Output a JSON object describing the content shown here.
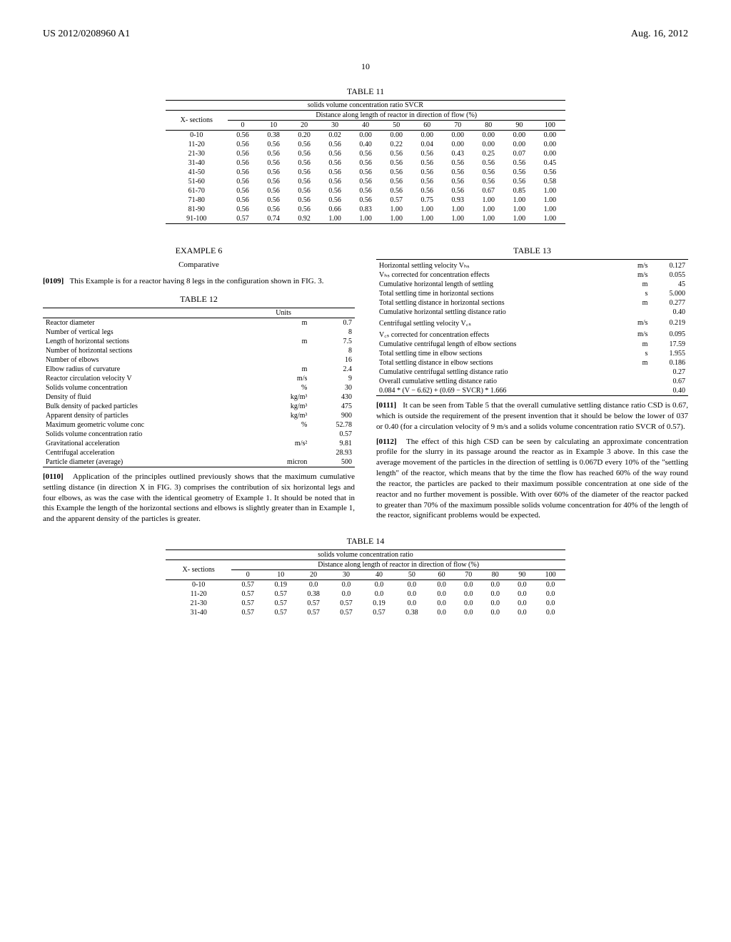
{
  "header": {
    "left": "US 2012/0208960 A1",
    "right": "Aug. 16, 2012",
    "page": "10"
  },
  "table11": {
    "title": "TABLE 11",
    "subtitle": "solids volume concentration ratio SVCR",
    "col_group_label": "Distance along length of reactor in direction of flow (%)",
    "row_label": "X-\nsections",
    "cols": [
      "0",
      "10",
      "20",
      "30",
      "40",
      "50",
      "60",
      "70",
      "80",
      "90",
      "100"
    ],
    "row_labels": [
      "0-10",
      "11-20",
      "21-30",
      "31-40",
      "41-50",
      "51-60",
      "61-70",
      "71-80",
      "81-90",
      "91-100"
    ],
    "rows": [
      [
        "0.56",
        "0.38",
        "0.20",
        "0.02",
        "0.00",
        "0.00",
        "0.00",
        "0.00",
        "0.00",
        "0.00",
        "0.00"
      ],
      [
        "0.56",
        "0.56",
        "0.56",
        "0.56",
        "0.40",
        "0.22",
        "0.04",
        "0.00",
        "0.00",
        "0.00",
        "0.00"
      ],
      [
        "0.56",
        "0.56",
        "0.56",
        "0.56",
        "0.56",
        "0.56",
        "0.56",
        "0.43",
        "0.25",
        "0.07",
        "0.00"
      ],
      [
        "0.56",
        "0.56",
        "0.56",
        "0.56",
        "0.56",
        "0.56",
        "0.56",
        "0.56",
        "0.56",
        "0.56",
        "0.45"
      ],
      [
        "0.56",
        "0.56",
        "0.56",
        "0.56",
        "0.56",
        "0.56",
        "0.56",
        "0.56",
        "0.56",
        "0.56",
        "0.56"
      ],
      [
        "0.56",
        "0.56",
        "0.56",
        "0.56",
        "0.56",
        "0.56",
        "0.56",
        "0.56",
        "0.56",
        "0.56",
        "0.58"
      ],
      [
        "0.56",
        "0.56",
        "0.56",
        "0.56",
        "0.56",
        "0.56",
        "0.56",
        "0.56",
        "0.67",
        "0.85",
        "1.00"
      ],
      [
        "0.56",
        "0.56",
        "0.56",
        "0.56",
        "0.56",
        "0.57",
        "0.75",
        "0.93",
        "1.00",
        "1.00",
        "1.00"
      ],
      [
        "0.56",
        "0.56",
        "0.56",
        "0.66",
        "0.83",
        "1.00",
        "1.00",
        "1.00",
        "1.00",
        "1.00",
        "1.00"
      ],
      [
        "0.57",
        "0.74",
        "0.92",
        "1.00",
        "1.00",
        "1.00",
        "1.00",
        "1.00",
        "1.00",
        "1.00",
        "1.00"
      ]
    ]
  },
  "example6": {
    "title": "EXAMPLE 6",
    "subtitle": "Comparative",
    "p0109_num": "[0109]",
    "p0109": "This Example is for a reactor having 8 legs in the configuration shown in FIG. 3.",
    "p0110_num": "[0110]",
    "p0110": "Application of the principles outlined previously shows that the maximum cumulative settling distance (in direction X in FIG. 3) comprises the contribution of six horizontal legs and four elbows, as was the case with the identical geometry of Example 1. It should be noted that in this Example the length of the horizontal sections and elbows is slightly greater than in Example 1, and the apparent density of the particles is greater.",
    "p0111_num": "[0111]",
    "p0111": "It can be seen from Table 5 that the overall cumulative settling distance ratio CSD is 0.67, which is outside the requirement of the present invention that it should be below the lower of 037 or 0.40 (for a circulation velocity of 9 m/s and a solids volume concentration ratio SVCR of 0.57).",
    "p0112_num": "[0112]",
    "p0112": "The effect of this high CSD can be seen by calculating an approximate concentration profile for the slurry in its passage around the reactor as in Example 3 above. In this case the average movement of the particles in the direction of settling is 0.067D every 10% of the \"settling length\" of the reactor, which means that by the time the flow has reached 60% of the way round the reactor, the particles are packed to their maximum possible concentration at one side of the reactor and no further movement is possible. With over 60% of the diameter of the reactor packed to greater than 70% of the maximum possible solids volume concentration for 40% of the length of the reactor, significant problems would be expected."
  },
  "table12": {
    "title": "TABLE 12",
    "header_units": "Units",
    "rows": [
      [
        "Reactor diameter",
        "m",
        "0.7"
      ],
      [
        "Number of vertical legs",
        "",
        "8"
      ],
      [
        "Length of horizontal sections",
        "m",
        "7.5"
      ],
      [
        "Number of horizontal sections",
        "",
        "8"
      ],
      [
        "Number of elbows",
        "",
        "16"
      ],
      [
        "Elbow radius of curvature",
        "m",
        "2.4"
      ],
      [
        "Reactor circulation velocity V",
        "m/s",
        "9"
      ],
      [
        "Solids volume concentration",
        "%",
        "30"
      ],
      [
        "Density of fluid",
        "kg/m³",
        "430"
      ],
      [
        "Bulk density of packed particles",
        "kg/m³",
        "475"
      ],
      [
        "Apparent density of particles",
        "kg/m³",
        "900"
      ],
      [
        "Maximum geometric volume conc",
        "%",
        "52.78"
      ],
      [
        "Solids volume concentration ratio",
        "",
        "0.57"
      ],
      [
        "Gravitational acceleration",
        "m/s²",
        "9.81"
      ],
      [
        "Centrifugal acceleration",
        "",
        "28.93"
      ],
      [
        "Particle diameter (average)",
        "micron",
        "500"
      ]
    ]
  },
  "table13": {
    "title": "TABLE 13",
    "rows": [
      [
        "Horizontal settling velocity Vₕₛ",
        "m/s",
        "0.127"
      ],
      [
        "Vₕₛ corrected for concentration effects",
        "m/s",
        "0.055"
      ],
      [
        "Cumulative horizontal length of settling",
        "m",
        "45"
      ],
      [
        "Total settling time in horizontal sections",
        "s",
        "5.000"
      ],
      [
        "Total settling distance in horizontal sections",
        "m",
        "0.277"
      ],
      [
        "Cumulative horizontal settling distance ratio",
        "",
        "0.40"
      ],
      [
        "Centrifugal settling velocity V꜀ₛ",
        "m/s",
        "0.219"
      ],
      [
        "V꜀ₛ corrected for concentration effects",
        "m/s",
        "0.095"
      ],
      [
        "Cumulative centrifugal length of elbow sections",
        "m",
        "17.59"
      ],
      [
        "Total settling time in elbow sections",
        "s",
        "1.955"
      ],
      [
        "Total settling distance in elbow sections",
        "m",
        "0.186"
      ],
      [
        "Cumulative centrifugal settling distance ratio",
        "",
        "0.27"
      ],
      [
        "Overall cumulative settling distance ratio",
        "",
        "0.67"
      ],
      [
        "0.084 * (V − 6.62) + (0.69 − SVCR) * 1.666",
        "",
        "0.40"
      ]
    ]
  },
  "table14": {
    "title": "TABLE 14",
    "subtitle": "solids volume concentration ratio",
    "col_group_label": "Distance along length of reactor in direction of flow (%)",
    "row_label": "X-\nsections",
    "cols": [
      "0",
      "10",
      "20",
      "30",
      "40",
      "50",
      "60",
      "70",
      "80",
      "90",
      "100"
    ],
    "row_labels": [
      "0-10",
      "11-20",
      "21-30",
      "31-40"
    ],
    "rows": [
      [
        "0.57",
        "0.19",
        "0.0",
        "0.0",
        "0.0",
        "0.0",
        "0.0",
        "0.0",
        "0.0",
        "0.0",
        "0.0"
      ],
      [
        "0.57",
        "0.57",
        "0.38",
        "0.0",
        "0.0",
        "0.0",
        "0.0",
        "0.0",
        "0.0",
        "0.0",
        "0.0"
      ],
      [
        "0.57",
        "0.57",
        "0.57",
        "0.57",
        "0.19",
        "0.0",
        "0.0",
        "0.0",
        "0.0",
        "0.0",
        "0.0"
      ],
      [
        "0.57",
        "0.57",
        "0.57",
        "0.57",
        "0.57",
        "0.38",
        "0.0",
        "0.0",
        "0.0",
        "0.0",
        "0.0"
      ]
    ]
  }
}
